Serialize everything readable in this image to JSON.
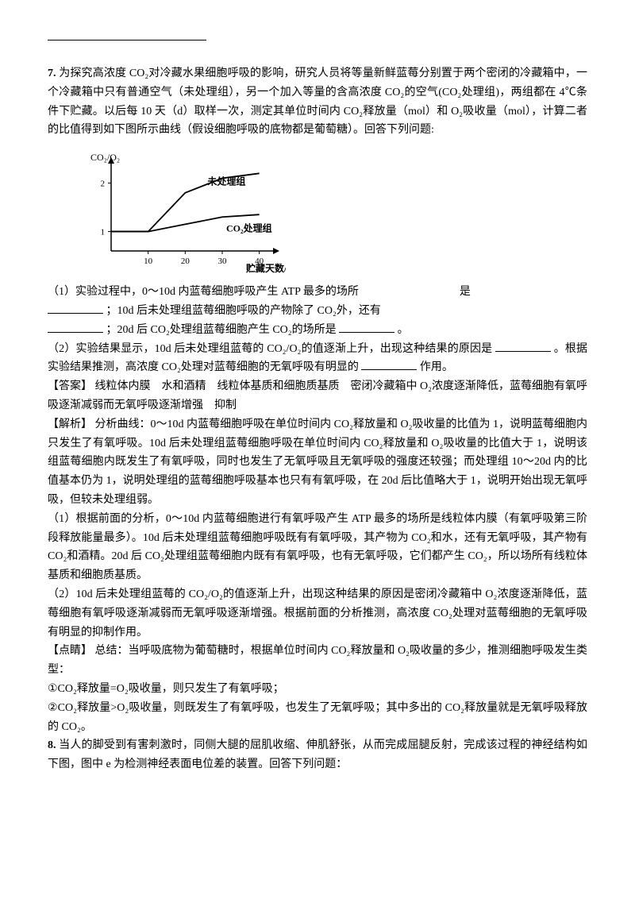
{
  "q7": {
    "num": "7.",
    "intro": "为探究高浓度 CO₂对冷藏水果细胞呼吸的影响，研究人员将等量新鲜蓝莓分别置于两个密闭的冷藏箱中，一个冷藏箱中只有普通空气（未处理组），另一个加入等量的含高浓度 CO₂的空气(CO₂处理组)，两组都在 4℃条件下贮藏。以后每 10 天（d）取样一次，测定其单位时间内 CO₂释放量（mol）和 O₂吸收量（mol），计算二者的比值得到如下图所示曲线（假设细胞呼吸的底物都是葡萄糖）。回答下列问题:",
    "chart": {
      "ylabel": "CO₂/O₂",
      "xlabel": "贮藏天数/d",
      "yticks": [
        "1",
        "2"
      ],
      "xticks": [
        "10",
        "20",
        "30",
        "40"
      ],
      "series1_label": "未处理组",
      "series2_label": "CO₂处理组",
      "series1": [
        [
          0,
          1.0
        ],
        [
          10,
          1.0
        ],
        [
          20,
          1.8
        ],
        [
          30,
          2.1
        ],
        [
          40,
          2.2
        ]
      ],
      "series2": [
        [
          0,
          1.0
        ],
        [
          10,
          1.0
        ],
        [
          20,
          1.15
        ],
        [
          30,
          1.3
        ],
        [
          40,
          1.35
        ]
      ],
      "axis_color": "#000000",
      "line_color": "#000000",
      "label_fontsize": 12,
      "tick_fontsize": 11,
      "stroke_width": 1.8
    },
    "p1a": "（1）实验过程中，0～10d 内蓝莓细胞呼吸产生 ATP 最多的场所",
    "p1a_end": "是",
    "p1b": "；10d 后未处理组蓝莓细胞呼吸的产物除了 CO₂外，还有",
    "p1c": "；20d 后 CO₂处理组蓝莓细胞产生 CO₂的场所是",
    "p1c_end": "。",
    "p2a": "（2）实验结果显示，10d 后未处理组蓝莓的 CO₂/O₂的值逐渐上升，出现这种结果的原因是",
    "p2b": "。根据实验结果推测，高浓度 CO₂处理对蓝莓细胞的无氧呼吸有明显的",
    "p2b_end": "作用。",
    "ans_label": "【答案】",
    "ans_text": "线粒体内膜　水和酒精　线粒体基质和细胞质基质　密闭冷藏箱中 O₂浓度逐渐降低，蓝莓细胞有氧呼吸逐渐减弱而无氧呼吸逐渐增强　抑制",
    "jx_label": "【解析】",
    "jx_text": "分析曲线：0～10d 内蓝莓细胞呼吸在单位时间内 CO₂释放量和 O₂吸收量的比值为 1，说明蓝莓细胞内只发生了有氧呼吸。10d 后未处理组蓝莓细胞呼吸在单位时间内 CO₂释放量和 O₂吸收量的比值大于 1，说明该组蓝莓细胞内既发生了有氧呼吸，同时也发生了无氧呼吸且无氧呼吸的强度还较强；而处理组 10～20d 内的比值基本仍为 1，说明处理组的蓝莓细胞呼吸基本也只有有氧呼吸，在 20d 后比值略大于 1，说明开始出现无氧呼吸，但较未处理组弱。",
    "jx_p1": "（1）根据前面的分析，0～10d 内蓝莓细胞进行有氧呼吸产生 ATP 最多的场所是线粒体内膜（有氧呼吸第三阶段释放能量最多）。10d 后未处理组蓝莓细胞呼吸既有有氧呼吸，其产物为 CO₂和水，还有无氧呼吸，其产物有 CO₂和酒精。20d 后 CO₂处理组蓝莓细胞内既有有氧呼吸，也有无氧呼吸，它们都产生 CO₂，所以场所有线粒体基质和细胞质基质。",
    "jx_p2": "（2）10d 后未处理组蓝莓的 CO₂/O₂的值逐渐上升，出现这种结果的原因是密闭冷藏箱中 O₂浓度逐渐降低，蓝莓细胞有氧呼吸逐渐减弱而无氧呼吸逐渐增强。根据前面的分析推测，高浓度 CO₂处理对蓝莓细胞的无氧呼吸有明显的抑制作用。",
    "dj_label": "【点睛】",
    "dj_text": "总结：当呼吸底物为葡萄糖时，根据单位时间内 CO₂释放量和 O₂吸收量的多少，推测细胞呼吸发生类型：",
    "dj_1": "①CO₂释放量=O₂吸收量，则只发生了有氧呼吸；",
    "dj_2": "②CO₂释放量>O₂吸收量，则既发生了有氧呼吸，也发生了无氧呼吸；其中多出的 CO₂释放量就是无氧呼吸释放的 CO₂。"
  },
  "q8": {
    "num": "8.",
    "intro": "当人的脚受到有害刺激时，同侧大腿的屈肌收缩、伸肌舒张，从而完成屈腿反射，完成该过程的神经结构如下图，图中 e 为检测神经表面电位差的装置。回答下列问题："
  }
}
